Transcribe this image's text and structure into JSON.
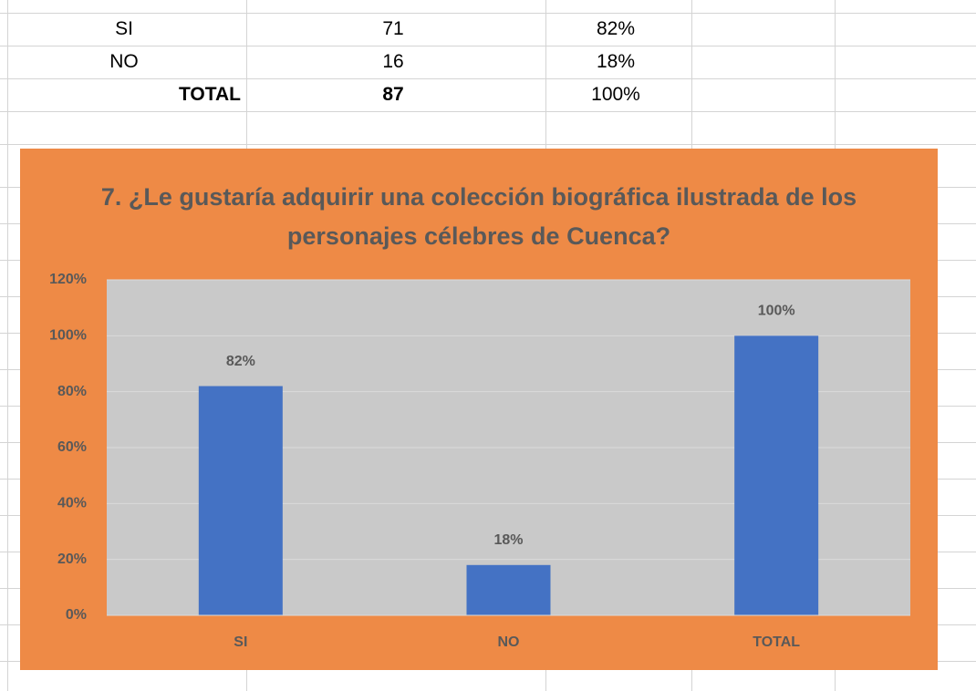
{
  "table": {
    "rows": [
      [
        "SI",
        "71",
        "82%"
      ],
      [
        "NO",
        "16",
        "18%"
      ],
      [
        "TOTAL",
        "87",
        "100%"
      ]
    ]
  },
  "chart_data": {
    "type": "bar",
    "title": "7. ¿Le gustaría adquirir una colección biográfica ilustrada de los personajes célebres de Cuenca?",
    "categories": [
      "SI",
      "NO",
      "TOTAL"
    ],
    "values": [
      82,
      18,
      100
    ],
    "value_labels": [
      "82%",
      "18%",
      "100%"
    ],
    "color": "#4472c4",
    "ylim": [
      0,
      120
    ],
    "yticks": [
      {
        "value": 0,
        "label": "0%"
      },
      {
        "value": 20,
        "label": "20%"
      },
      {
        "value": 40,
        "label": "40%"
      },
      {
        "value": 60,
        "label": "60%"
      },
      {
        "value": 80,
        "label": "80%"
      },
      {
        "value": 100,
        "label": "100%"
      },
      {
        "value": 120,
        "label": "120%"
      }
    ],
    "grid": true
  }
}
